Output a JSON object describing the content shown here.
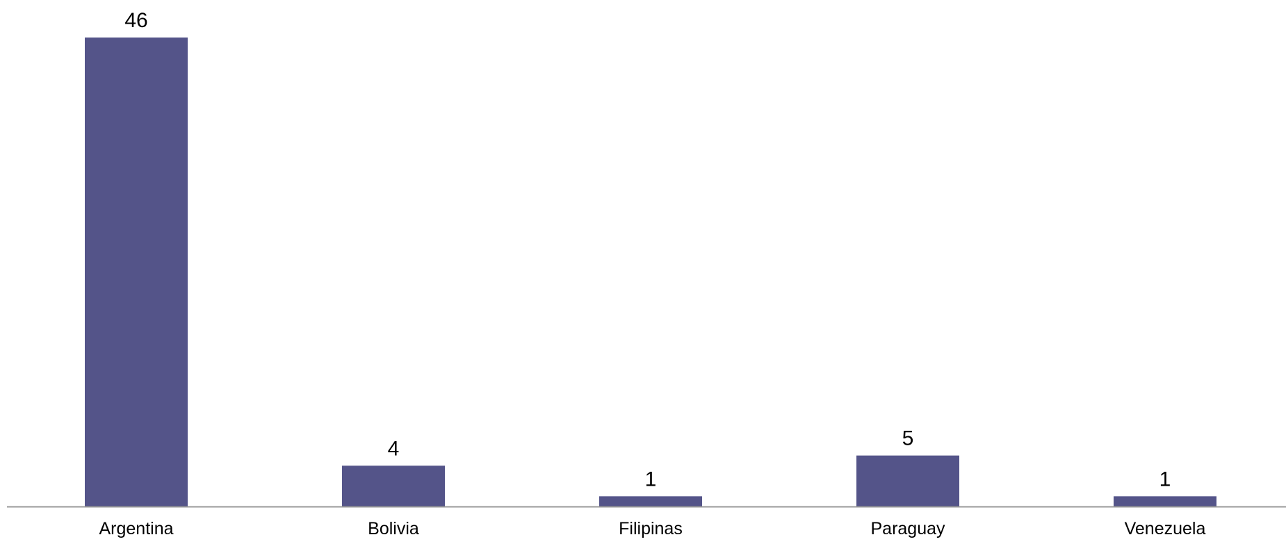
{
  "chart_data": {
    "type": "bar",
    "title": "",
    "xlabel": "",
    "ylabel": "",
    "categories": [
      "Argentina",
      "Bolivia",
      "Filipinas",
      "Paraguay",
      "Venezuela"
    ],
    "values": [
      46,
      4,
      1,
      5,
      1
    ],
    "data_labels": [
      "46",
      "4",
      "1",
      "5",
      "1"
    ],
    "ylim": [
      0,
      46
    ],
    "grid": false,
    "legend": "none",
    "colors": {
      "bar": "#545489",
      "axis": "#999999",
      "text": "#000000"
    }
  }
}
